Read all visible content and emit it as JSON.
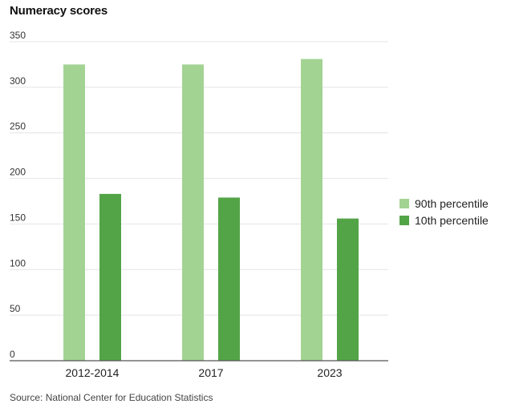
{
  "chart_data": {
    "type": "bar",
    "title": "Numeracy scores",
    "categories": [
      "2012-2014",
      "2017",
      "2023"
    ],
    "series": [
      {
        "name": "90th percentile",
        "color": "#a3d393",
        "values": [
          325,
          325,
          331
        ]
      },
      {
        "name": "10th percentile",
        "color": "#53a447",
        "values": [
          183,
          179,
          156
        ]
      }
    ],
    "yticks": [
      0,
      50,
      100,
      150,
      200,
      250,
      300,
      350
    ],
    "ylim": [
      0,
      350
    ],
    "grid": true,
    "legend_position": "right",
    "source": "Source: National Center for Education Statistics"
  }
}
